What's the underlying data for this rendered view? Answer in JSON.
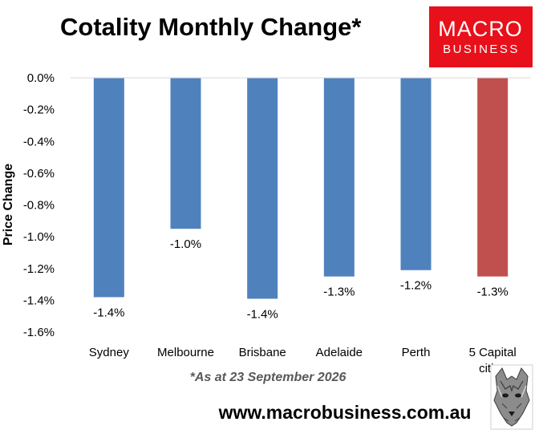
{
  "header": {
    "title": "Cotality Monthly Change*"
  },
  "logo": {
    "line1": "MACRO",
    "line2": "BUSINESS",
    "bg_color": "#e8101a"
  },
  "chart_data": {
    "type": "bar",
    "categories": [
      "Sydney",
      "Melbourne",
      "Brisbane",
      "Adelaide",
      "Perth",
      "5 Capital cities"
    ],
    "category_lines": [
      [
        "Sydney"
      ],
      [
        "Melbourne"
      ],
      [
        "Brisbane"
      ],
      [
        "Adelaide"
      ],
      [
        "Perth"
      ],
      [
        "5 Capital",
        "cities"
      ]
    ],
    "values": [
      -1.38,
      -0.95,
      -1.39,
      -1.25,
      -1.21,
      -1.25
    ],
    "data_labels": [
      "-1.4%",
      "-1.0%",
      "-1.4%",
      "-1.3%",
      "-1.2%",
      "-1.3%"
    ],
    "bar_colors": [
      "#4f81bd",
      "#4f81bd",
      "#4f81bd",
      "#4f81bd",
      "#4f81bd",
      "#c0504d"
    ],
    "ylabel": "Price Change",
    "xlabel": "",
    "ylim": [
      -1.6,
      0.0
    ],
    "yticks": [
      0.0,
      -0.2,
      -0.4,
      -0.6,
      -0.8,
      -1.0,
      -1.2,
      -1.4,
      -1.6
    ],
    "ytick_labels": [
      "0.0%",
      "-0.2%",
      "-0.4%",
      "-0.6%",
      "-0.8%",
      "-1.0%",
      "-1.2%",
      "-1.4%",
      "-1.6%"
    ],
    "grid": false,
    "legend": "none"
  },
  "footnote": "*As at 23 September 2026",
  "footer": {
    "website": "www.macrobusiness.com.au",
    "mascot_icon": "wolf-head-icon"
  }
}
